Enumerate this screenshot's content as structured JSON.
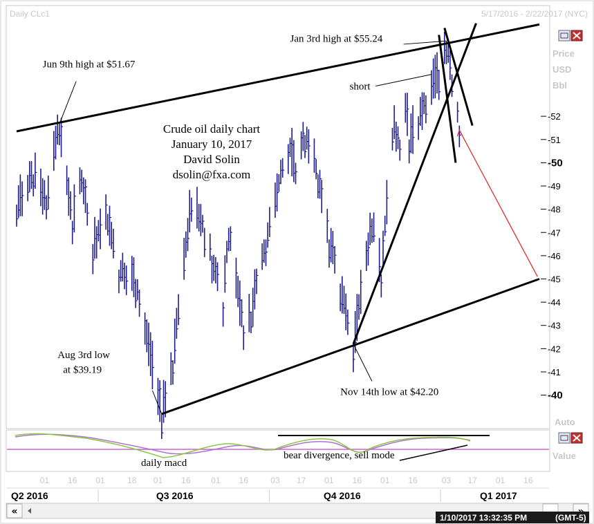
{
  "header": {
    "symbol": "Daily CLc1",
    "range": "5/17/2016 - 2/22/2017 (NYC)"
  },
  "axis": {
    "label_price": "Price",
    "label_unit": "USD",
    "label_unit2": "Bbl",
    "auto": "Auto",
    "value": "Value"
  },
  "title_block": {
    "line1": "Crude oil daily chart",
    "line2": "January 10, 2017",
    "line3": "David Solin",
    "line4": "dsolin@fxa.com"
  },
  "footer": {
    "timestamp": "1/10/2017 13:32:35 PM",
    "timezone": "(GMT-5)"
  },
  "chart_data": {
    "type": "candlestick",
    "ylim": [
      38.9,
      55.8
    ],
    "yticks": [
      40,
      41,
      42,
      43,
      44,
      45,
      46,
      47,
      48,
      49,
      50,
      51,
      52
    ],
    "bold_ticks": [
      40,
      50
    ],
    "xticks": [
      {
        "label": "01",
        "date": "2016-06-01"
      },
      {
        "label": "16",
        "date": "2016-06-16"
      },
      {
        "label": "01",
        "date": "2016-07-01"
      },
      {
        "label": "18",
        "date": "2016-07-18"
      },
      {
        "label": "01",
        "date": "2016-08-01"
      },
      {
        "label": "16",
        "date": "2016-08-16"
      },
      {
        "label": "01",
        "date": "2016-09-01"
      },
      {
        "label": "16",
        "date": "2016-09-16"
      },
      {
        "label": "03",
        "date": "2016-10-03"
      },
      {
        "label": "17",
        "date": "2016-10-17"
      },
      {
        "label": "01",
        "date": "2016-11-01"
      },
      {
        "label": "16",
        "date": "2016-11-16"
      },
      {
        "label": "01",
        "date": "2016-12-01"
      },
      {
        "label": "16",
        "date": "2016-12-16"
      },
      {
        "label": "03",
        "date": "2017-01-03"
      },
      {
        "label": "17",
        "date": "2017-01-17"
      },
      {
        "label": "01",
        "date": "2017-02-01"
      },
      {
        "label": "16",
        "date": "2017-02-16"
      }
    ],
    "quarters": [
      {
        "label": "Q2 2016",
        "date": "2016-05-24"
      },
      {
        "label": "Q3 2016",
        "date": "2016-08-10"
      },
      {
        "label": "Q4 2016",
        "date": "2016-11-08"
      },
      {
        "label": "Q1 2017",
        "date": "2017-01-31"
      }
    ],
    "pivots": [
      [
        "2016-05-17",
        48.2
      ],
      [
        "2016-05-26",
        49.5
      ],
      [
        "2016-06-02",
        48.6
      ],
      [
        "2016-06-09",
        51.67
      ],
      [
        "2016-06-16",
        47.5
      ],
      [
        "2016-06-20",
        49.8
      ],
      [
        "2016-06-27",
        46.5
      ],
      [
        "2016-07-05",
        47.8
      ],
      [
        "2016-07-11",
        45.4
      ],
      [
        "2016-07-20",
        45.0
      ],
      [
        "2016-08-03",
        39.19
      ],
      [
        "2016-08-09",
        41.5
      ],
      [
        "2016-08-19",
        48.5
      ],
      [
        "2016-08-26",
        47.2
      ],
      [
        "2016-08-30",
        46.0
      ],
      [
        "2016-09-05",
        44.0
      ],
      [
        "2016-09-08",
        47.2
      ],
      [
        "2016-09-16",
        43.0
      ],
      [
        "2016-09-20",
        43.6
      ],
      [
        "2016-09-28",
        46.7
      ],
      [
        "2016-10-10",
        50.8
      ],
      [
        "2016-10-14",
        50.0
      ],
      [
        "2016-10-19",
        51.2
      ],
      [
        "2016-10-26",
        49.5
      ],
      [
        "2016-11-01",
        46.7
      ],
      [
        "2016-11-07",
        44.8
      ],
      [
        "2016-11-14",
        42.2
      ],
      [
        "2016-11-24",
        47.6
      ],
      [
        "2016-11-29",
        45.2
      ],
      [
        "2016-12-05",
        51.5
      ],
      [
        "2016-12-09",
        51.0
      ],
      [
        "2016-12-12",
        53.0
      ],
      [
        "2016-12-14",
        51.0
      ],
      [
        "2016-12-19",
        52.0
      ],
      [
        "2016-12-23",
        52.9
      ],
      [
        "2016-12-30",
        54.0
      ],
      [
        "2017-01-03",
        55.24
      ],
      [
        "2017-01-06",
        53.8
      ],
      [
        "2017-01-10",
        51.6
      ]
    ],
    "trendlines": [
      {
        "from": [
          "2016-05-17",
          51.35
        ],
        "to": [
          "2017-02-22",
          55.95
        ]
      },
      {
        "from": [
          "2016-08-03",
          39.19
        ],
        "to": [
          "2017-02-22",
          45.0
        ]
      },
      {
        "from": [
          "2016-11-14",
          42.2
        ],
        "to": [
          "2017-01-19",
          56.0
        ]
      },
      {
        "from": [
          "2016-12-30",
          55.5
        ],
        "to": [
          "2017-01-08",
          50.0
        ]
      },
      {
        "from": [
          "2017-01-02",
          55.8
        ],
        "to": [
          "2017-01-17",
          51.6
        ]
      }
    ],
    "projection": {
      "from": [
        "2017-01-10",
        51.4
      ],
      "to": [
        "2017-02-21",
        45.1
      ],
      "color": "#e03030"
    },
    "annotations": [
      {
        "text": "Jun 9th high at $51.67",
        "date": "2016-06-09",
        "price": 51.67,
        "anchor_date": "2016-06-18",
        "anchor_price": 53.5,
        "label_date": "2016-05-31",
        "label_price": 54.1
      },
      {
        "text": "Jan 3rd high at $55.24",
        "date": "2017-01-03",
        "price": 55.24,
        "anchor_date": "2016-12-11",
        "anchor_price": 55.1,
        "label_date": "2016-10-11",
        "label_price": 55.2
      },
      {
        "text": "short",
        "date": "2016-12-26",
        "price": 53.8,
        "anchor_date": "2016-11-26",
        "anchor_price": 53.3,
        "label_date": "2016-11-12",
        "label_price": 53.15
      },
      {
        "text": "Aug 3rd low",
        "date": "2016-08-03",
        "price": 39.19,
        "anchor_date": "2016-07-29",
        "anchor_price": 40.2,
        "label_date": "2016-06-08",
        "label_price": 41.6
      },
      {
        "text": "at $39.19",
        "date": "",
        "price": 0,
        "anchor_date": "",
        "anchor_price": 0,
        "label_date": "2016-06-11",
        "label_price": 40.95
      },
      {
        "text": "Nov 14th low at $42.20",
        "date": "2016-11-14",
        "price": 42.2,
        "anchor_date": "2016-11-24",
        "anchor_price": 40.6,
        "label_date": "2016-11-07",
        "label_price": 40.0
      }
    ],
    "macd": {
      "label": "daily macd",
      "divergence_label": "bear divergence, sell mode"
    }
  }
}
